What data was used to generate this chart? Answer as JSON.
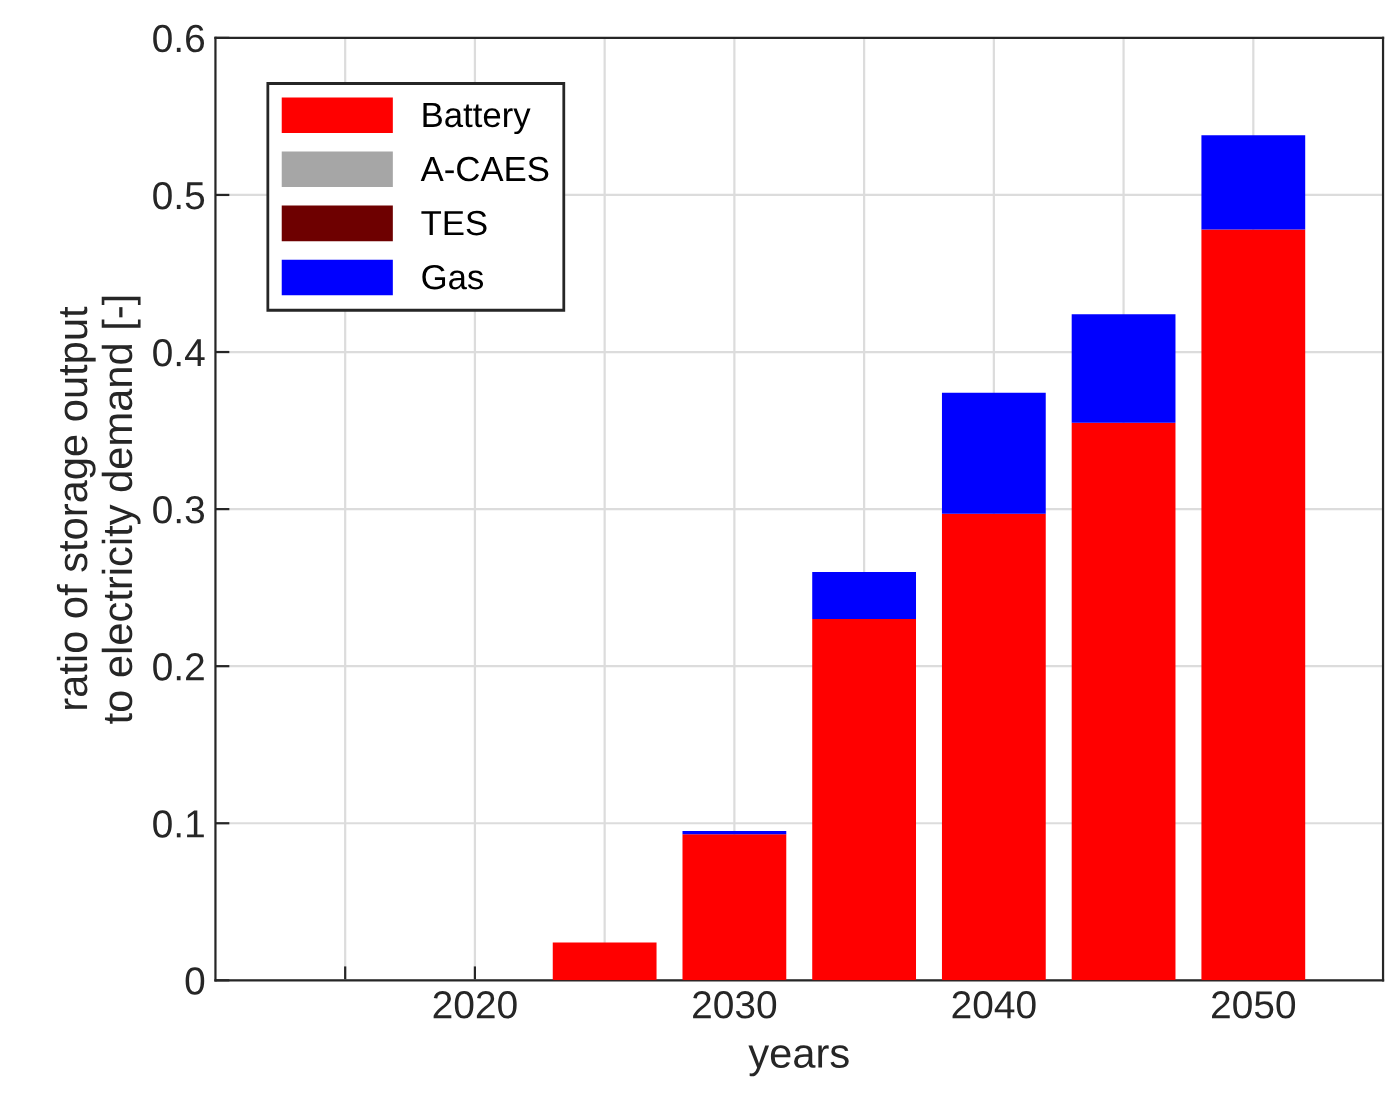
{
  "chart_data": {
    "type": "bar",
    "stacked": true,
    "xlabel": "years",
    "ylabel": "ratio of storage output\nto electricity demand [-]",
    "x": [
      2025,
      2030,
      2035,
      2040,
      2045,
      2050
    ],
    "series": [
      {
        "name": "Battery",
        "color": "#ff0000",
        "values": [
          0.024,
          0.093,
          0.23,
          0.297,
          0.355,
          0.478
        ]
      },
      {
        "name": "A-CAES",
        "color": "#a6a6a6",
        "values": [
          0,
          0,
          0,
          0,
          0,
          0
        ]
      },
      {
        "name": "TES",
        "color": "#6e0000",
        "values": [
          0,
          0,
          0,
          0,
          0,
          0
        ]
      },
      {
        "name": "Gas",
        "color": "#0000ff",
        "values": [
          0,
          0.002,
          0.03,
          0.077,
          0.069,
          0.06
        ]
      }
    ],
    "xlim": [
      2010,
      2055
    ],
    "xticks": [
      {
        "value": 2015,
        "label": null
      },
      2020,
      {
        "value": 2025,
        "label": null
      },
      2030,
      {
        "value": 2035,
        "label": null
      },
      2040,
      {
        "value": 2045,
        "label": null
      },
      2050
    ],
    "ylim": [
      0,
      0.6
    ],
    "yticks": [
      0,
      0.1,
      0.2,
      0.3,
      0.4,
      0.5,
      0.6
    ],
    "grid": true,
    "legend": "top left"
  }
}
